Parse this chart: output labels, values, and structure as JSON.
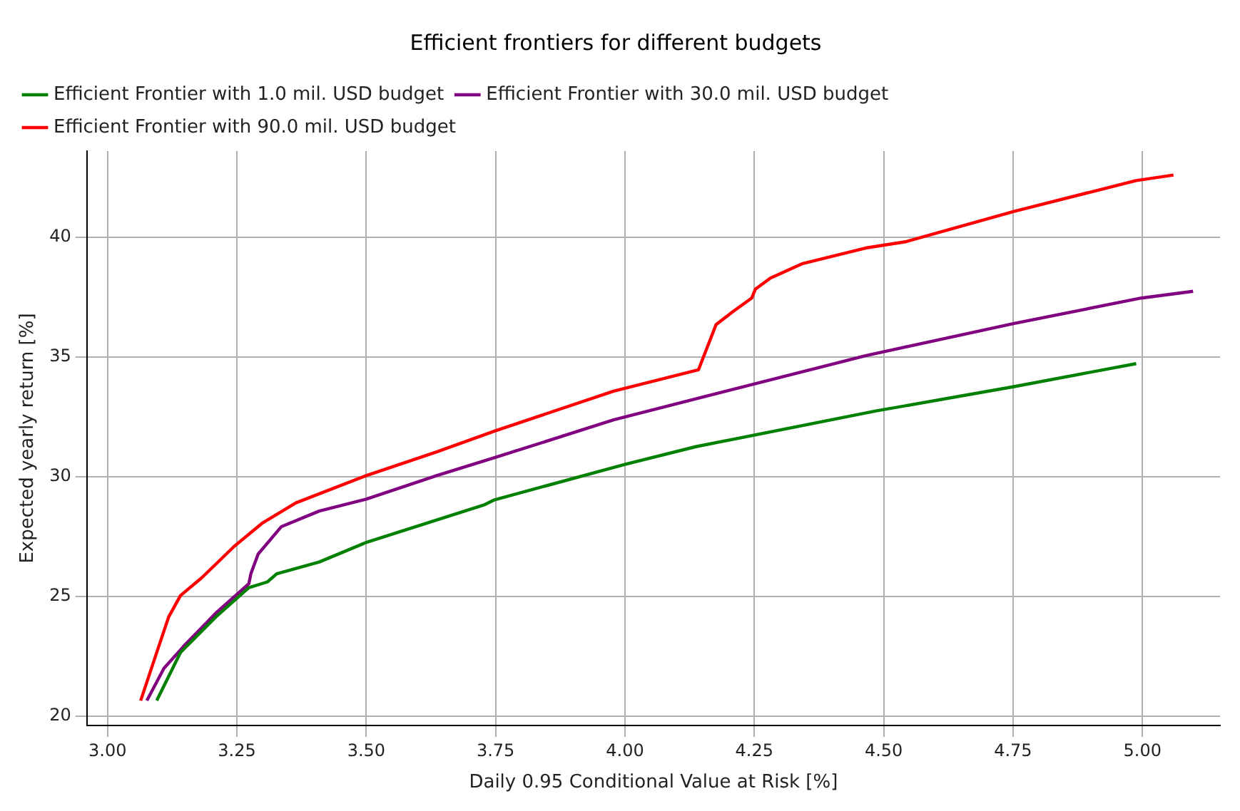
{
  "chart_data": {
    "type": "line",
    "title": "Efficient frontiers for different budgets",
    "xlabel": "Daily 0.95 Conditional Value at Risk [%]",
    "ylabel": "Expected yearly return [%]",
    "xlim": [
      2.96,
      5.15
    ],
    "ylim": [
      19.6,
      43.6
    ],
    "xticks": [
      {
        "value": 3,
        "label": "3.00"
      },
      {
        "value": 3.25,
        "label": "3.25"
      },
      {
        "value": 3.5,
        "label": "3.50"
      },
      {
        "value": 3.75,
        "label": "3.75"
      },
      {
        "value": 4,
        "label": "4.00"
      },
      {
        "value": 4.25,
        "label": "4.25"
      },
      {
        "value": 4.5,
        "label": "4.50"
      },
      {
        "value": 4.75,
        "label": "4.75"
      },
      {
        "value": 5,
        "label": "5.00"
      }
    ],
    "yticks": [
      20,
      25,
      30,
      35,
      40
    ],
    "grid": true,
    "legend": "top left",
    "marker": "none",
    "line_style": "solid",
    "series": [
      {
        "name": "Efficient Frontier with 1.0 mil. USD budget",
        "color": "#008000",
        "x": [
          3.095,
          3.141,
          3.209,
          3.273,
          3.309,
          3.327,
          3.409,
          3.5,
          3.727,
          3.748,
          4.0,
          4.137,
          4.485,
          4.752,
          4.988
        ],
        "values": [
          20.64,
          22.65,
          24.13,
          25.36,
          25.6,
          25.94,
          26.43,
          27.25,
          28.81,
          29.03,
          30.51,
          31.25,
          32.74,
          33.76,
          34.72
        ]
      },
      {
        "name": "Efficient Frontier with 30.0 mil. USD budget",
        "color": "#800080",
        "x": [
          3.076,
          3.109,
          3.15,
          3.209,
          3.273,
          3.277,
          3.291,
          3.336,
          3.409,
          3.5,
          3.636,
          3.748,
          3.978,
          4.137,
          4.465,
          4.752,
          4.998,
          5.098
        ],
        "values": [
          20.64,
          21.99,
          22.98,
          24.29,
          25.52,
          25.94,
          26.76,
          27.91,
          28.56,
          29.06,
          30.04,
          30.79,
          32.37,
          33.25,
          35.05,
          36.4,
          37.46,
          37.74
        ]
      },
      {
        "name": "Efficient Frontier with 90.0 mil. USD budget",
        "color": "#ff0000",
        "x": [
          3.064,
          3.095,
          3.118,
          3.141,
          3.182,
          3.245,
          3.3,
          3.364,
          3.5,
          3.636,
          3.748,
          3.978,
          4.142,
          4.176,
          4.209,
          4.245,
          4.252,
          4.281,
          4.342,
          4.465,
          4.542,
          4.752,
          4.988,
          5.06
        ],
        "values": [
          20.64,
          22.65,
          24.13,
          25.03,
          25.77,
          27.09,
          28.07,
          28.9,
          30.04,
          31.03,
          31.9,
          33.57,
          34.46,
          36.35,
          36.9,
          37.46,
          37.83,
          38.29,
          38.89,
          39.55,
          39.81,
          41.08,
          42.37,
          42.6
        ]
      }
    ]
  }
}
